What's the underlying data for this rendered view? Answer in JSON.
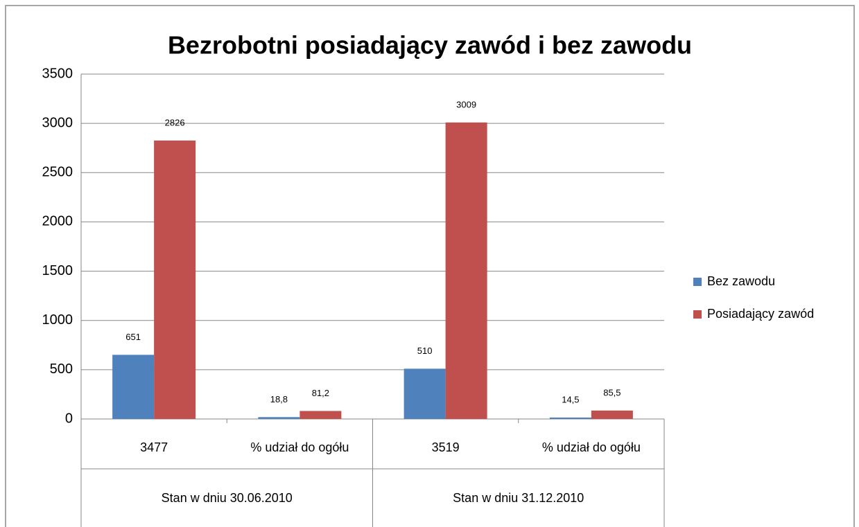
{
  "chart_data": {
    "type": "bar",
    "title": "Bezrobotni posiadający zawód i bez zawodu",
    "categories": [
      "3477",
      "% udział do ogółu",
      "3519",
      "% udział do ogółu"
    ],
    "groups": [
      "Stan w dniu 30.06.2010",
      "Stan w dniu 31.12.2010"
    ],
    "series": [
      {
        "name": "Bez zawodu",
        "color": "#4f81bd",
        "values": [
          651,
          18.8,
          510,
          14.5
        ],
        "value_labels": [
          "651",
          "18,8",
          "510",
          "14,5"
        ]
      },
      {
        "name": "Posiadający zawód",
        "color": "#c0504d",
        "values": [
          2826,
          81.2,
          3009,
          85.5
        ],
        "value_labels": [
          "2826",
          "81,2",
          "3009",
          "85,5"
        ]
      }
    ],
    "ylim": [
      0,
      3500
    ],
    "yticks": [
      0,
      500,
      1000,
      1500,
      2000,
      2500,
      3000,
      3500
    ],
    "grid": true,
    "legend": "right"
  }
}
